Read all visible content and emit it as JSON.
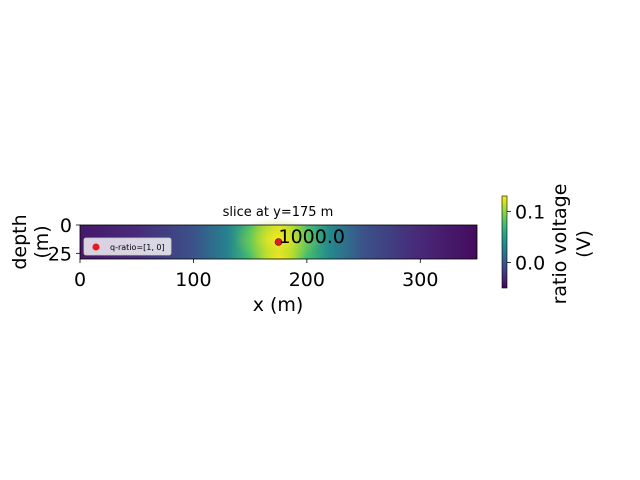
{
  "chart_data": {
    "type": "heatmap",
    "title": "slice at y=175 m",
    "xlabel": "x (m)",
    "ylabel": "depth\n(m)",
    "xlim": [
      0,
      350
    ],
    "ylim": [
      30,
      0
    ],
    "x_ticks": [
      "0",
      "100",
      "200",
      "300"
    ],
    "y_ticks": [
      "0",
      "25"
    ],
    "grid": false,
    "colormap": "viridis",
    "field": {
      "peak_x": 175,
      "peak_depth": 15,
      "peak_value": 0.13,
      "min_value": -0.05,
      "profile_x": [
        0,
        50,
        100,
        130,
        150,
        165,
        175,
        185,
        200,
        220,
        250,
        300,
        350
      ],
      "profile_value": [
        -0.038,
        -0.028,
        -0.005,
        0.03,
        0.075,
        0.115,
        0.13,
        0.115,
        0.075,
        0.035,
        -0.005,
        -0.03,
        -0.045
      ]
    },
    "points": [
      {
        "x": 175,
        "depth": 15,
        "label": "1000.0",
        "color": "#e41a1c"
      }
    ],
    "legend": {
      "position": "lower-left",
      "entries": [
        {
          "label": "q-ratio=[1, 0]",
          "color": "#e41a1c"
        }
      ]
    },
    "colorbar": {
      "label": "ratio voltage\n(V)",
      "ticks": [
        "0.0",
        "0.1"
      ],
      "tick_values": [
        0.0,
        0.1
      ],
      "range": [
        -0.05,
        0.13
      ]
    }
  }
}
